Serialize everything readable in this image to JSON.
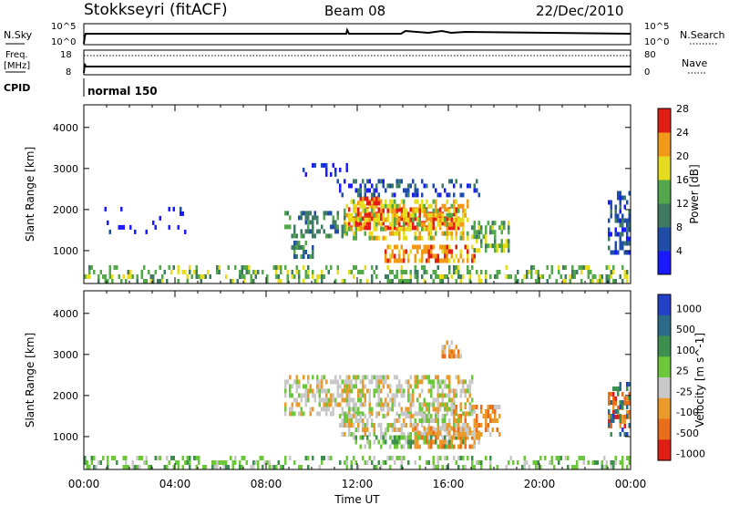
{
  "header": {
    "station": "Stokkseyri (fitACF)",
    "beam": "Beam 08",
    "date": "22/Dec/2010"
  },
  "nsky": {
    "label": "N.Sky",
    "left_ticks": [
      "10^5",
      "10^0"
    ],
    "right_ticks": [
      "10^5",
      "10^0"
    ],
    "right_label": "N.Search"
  },
  "freq": {
    "label_line1": "Freq.",
    "label_line2": "[MHz]",
    "left_ticks": [
      "18",
      "8"
    ],
    "right_ticks": [
      "80",
      "0"
    ],
    "right_label": "Nave"
  },
  "cpid": {
    "label": "CPID",
    "value": "normal 150"
  },
  "chart_data": [
    {
      "type": "heatmap",
      "title": "",
      "quantity": "Power",
      "ylabel": "Slant Range [km]",
      "ylim": [
        200,
        4550
      ],
      "y_ticks": [
        "1000",
        "2000",
        "3000",
        "4000"
      ],
      "x_range_hours": [
        0,
        24
      ],
      "colorbar_label": "Power [dB]",
      "colorbar_ticks": [
        "4",
        "8",
        "12",
        "16",
        "20",
        "24",
        "28"
      ],
      "colorbar_colors": [
        "#1a1aff",
        "#1f4ea8",
        "#3f7a62",
        "#52a84a",
        "#e6dc1e",
        "#f29a17",
        "#e01e16"
      ],
      "regions": [
        {
          "t0": 0.0,
          "t1": 24.0,
          "r0": 200,
          "r1": 550,
          "level": 3,
          "density": 0.35
        },
        {
          "t0": 11.6,
          "t1": 16.4,
          "r0": 1500,
          "r1": 2050,
          "level": 6,
          "density": 0.7
        },
        {
          "t0": 11.4,
          "t1": 16.8,
          "r0": 1250,
          "r1": 2200,
          "level": 4,
          "density": 0.55
        },
        {
          "t0": 12.0,
          "t1": 13.0,
          "r0": 2100,
          "r1": 2250,
          "level": 6,
          "density": 0.6
        },
        {
          "t0": 13.2,
          "t1": 17.2,
          "r0": 700,
          "r1": 1050,
          "level": 5,
          "density": 0.65
        },
        {
          "t0": 8.8,
          "t1": 11.4,
          "r0": 1300,
          "r1": 1900,
          "level": 2,
          "density": 0.45
        },
        {
          "t0": 11.0,
          "t1": 17.4,
          "r0": 2300,
          "r1": 2700,
          "level": 1,
          "density": 0.3
        },
        {
          "t0": 17.0,
          "t1": 18.7,
          "r0": 950,
          "r1": 1650,
          "level": 3,
          "density": 0.55
        },
        {
          "t0": 9.0,
          "t1": 10.0,
          "r0": 800,
          "r1": 1150,
          "level": 2,
          "density": 0.5
        },
        {
          "t0": 23.0,
          "t1": 24.0,
          "r0": 900,
          "r1": 2400,
          "level": 1,
          "density": 0.45
        },
        {
          "t0": 9.5,
          "t1": 11.5,
          "r0": 2800,
          "r1": 3100,
          "level": 0,
          "density": 0.15
        },
        {
          "t0": 0.8,
          "t1": 4.5,
          "r0": 1400,
          "r1": 2000,
          "level": 0,
          "density": 0.06
        }
      ]
    },
    {
      "type": "heatmap",
      "title": "",
      "quantity": "Velocity",
      "ylabel": "Slant Range [km]",
      "ylim": [
        200,
        4550
      ],
      "y_ticks": [
        "1000",
        "2000",
        "3000",
        "4000"
      ],
      "x_ticks": [
        "00:00",
        "04:00",
        "08:00",
        "12:00",
        "16:00",
        "20:00",
        "00:00"
      ],
      "x_range_hours": [
        0,
        24
      ],
      "xlabel": "Time UT",
      "colorbar_label": "Velocity [m s^-1]",
      "colorbar_ticks": [
        "1000",
        "500",
        "100",
        "25",
        "-25",
        "-100",
        "-500",
        "-1000"
      ],
      "colorbar_colors": [
        "#2340c8",
        "#2a6b8a",
        "#3c8f4e",
        "#6cc83a",
        "#c8c8c8",
        "#e89a2a",
        "#ea6e1a",
        "#e01e16"
      ],
      "regions": [
        {
          "t0": 0.0,
          "t1": 24.0,
          "r0": 200,
          "r1": 500,
          "level": 3,
          "density": 0.35
        },
        {
          "t0": 8.8,
          "t1": 17.0,
          "r0": 1500,
          "r1": 2450,
          "level": 4,
          "density": 0.55
        },
        {
          "t0": 11.2,
          "t1": 16.4,
          "r0": 1000,
          "r1": 1500,
          "level": 4,
          "density": 0.55
        },
        {
          "t0": 11.8,
          "t1": 16.6,
          "r0": 700,
          "r1": 1000,
          "level": 3,
          "density": 0.55
        },
        {
          "t0": 14.5,
          "t1": 17.4,
          "r0": 700,
          "r1": 1200,
          "level": 5,
          "density": 0.55
        },
        {
          "t0": 16.2,
          "t1": 18.3,
          "r0": 1000,
          "r1": 1700,
          "level": 5,
          "density": 0.5
        },
        {
          "t0": 15.6,
          "t1": 16.6,
          "r0": 2900,
          "r1": 3300,
          "level": 5,
          "density": 0.5
        },
        {
          "t0": 23.0,
          "t1": 24.0,
          "r0": 1200,
          "r1": 2000,
          "level": 6,
          "density": 0.6
        },
        {
          "t0": 23.0,
          "t1": 24.0,
          "r0": 1000,
          "r1": 2300,
          "level": 1,
          "density": 0.3
        }
      ]
    }
  ]
}
